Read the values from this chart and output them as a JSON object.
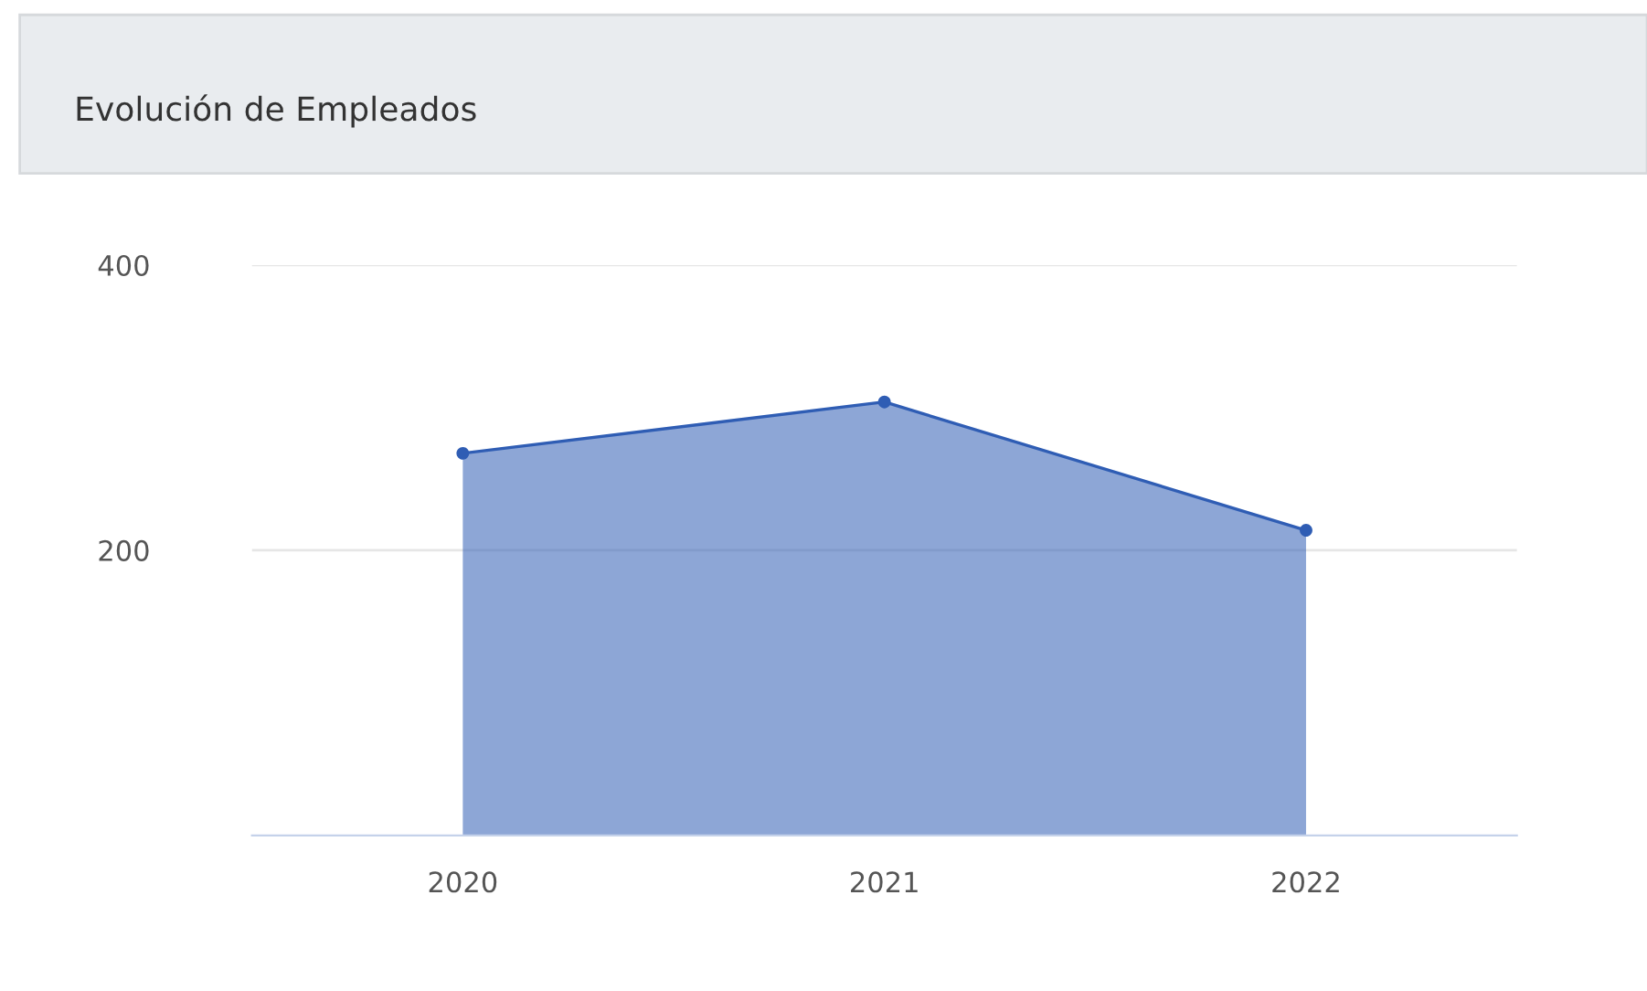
{
  "chart_data": {
    "type": "area",
    "title": "Evolución de Empleados",
    "categories": [
      "2020",
      "2021",
      "2022"
    ],
    "series": [
      {
        "color": "#2f5db4",
        "values": [
          268,
          304,
          214
        ]
      }
    ],
    "ylim": [
      0,
      400
    ],
    "yticks": [
      200,
      400
    ],
    "grid": "y",
    "marker": "circle",
    "legend": false
  }
}
